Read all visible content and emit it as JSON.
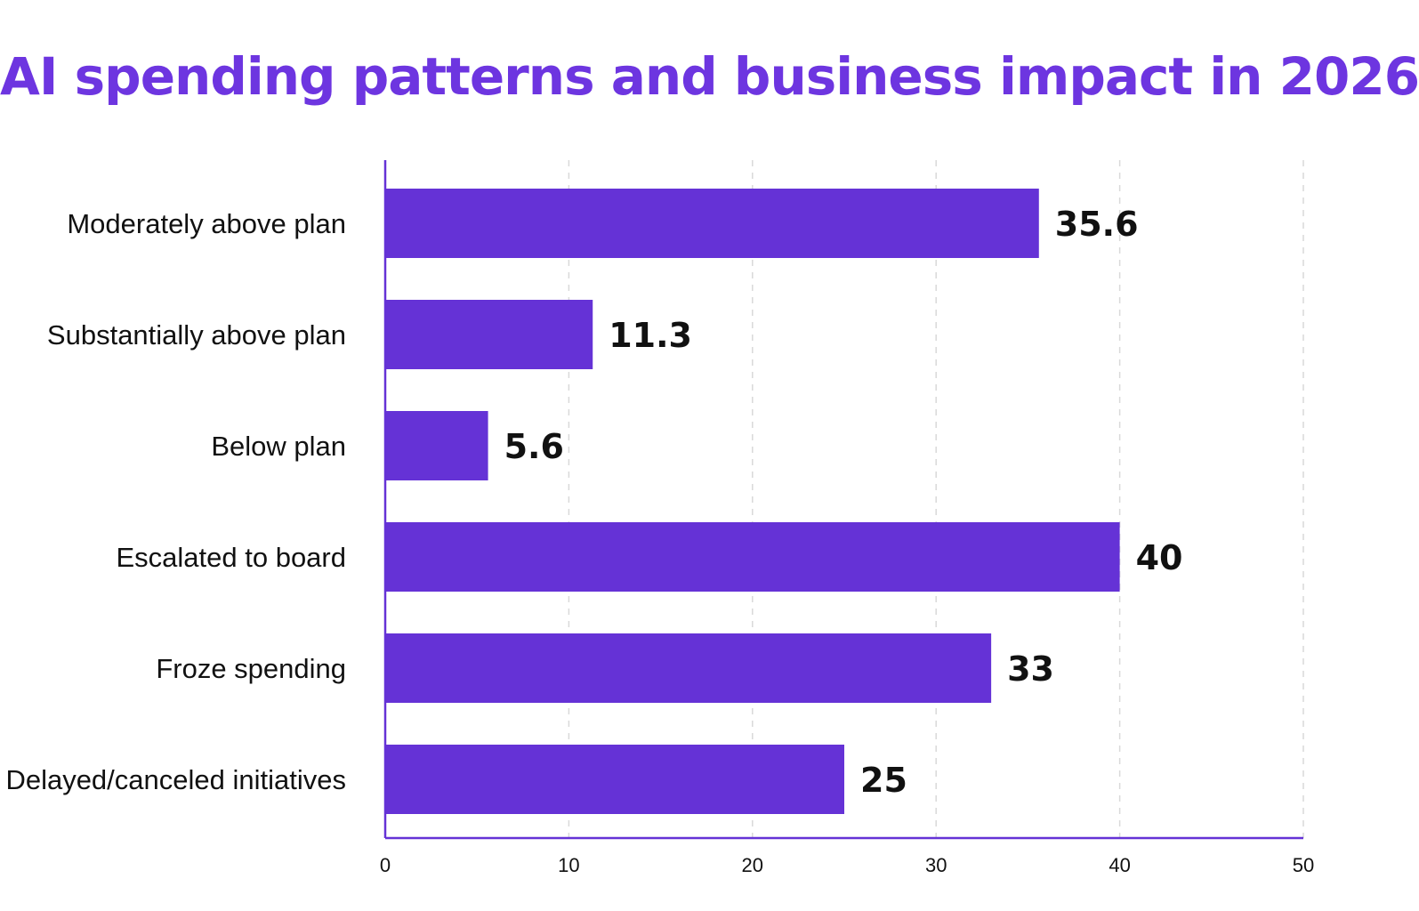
{
  "chart_data": {
    "type": "bar",
    "orientation": "horizontal",
    "title": "AI spending patterns and business impact in 2026",
    "categories": [
      "Moderately above plan",
      "Substantially above plan",
      "Below plan",
      "Escalated to board",
      "Froze spending",
      "Delayed/canceled initiatives"
    ],
    "values": [
      35.6,
      11.3,
      5.6,
      40,
      33,
      25
    ],
    "value_labels": [
      "35.6",
      "11.3",
      "5.6",
      "40",
      "33",
      "25"
    ],
    "xlabel": "",
    "ylabel": "",
    "xlim": [
      0,
      50
    ],
    "xticks": [
      0,
      10,
      20,
      30,
      40,
      50
    ],
    "grid": "vertical dashed",
    "colors": {
      "bar": "#6532d6",
      "title": "#6d35e0",
      "axis": "#6532d6",
      "grid": "#d9d9d9"
    }
  }
}
